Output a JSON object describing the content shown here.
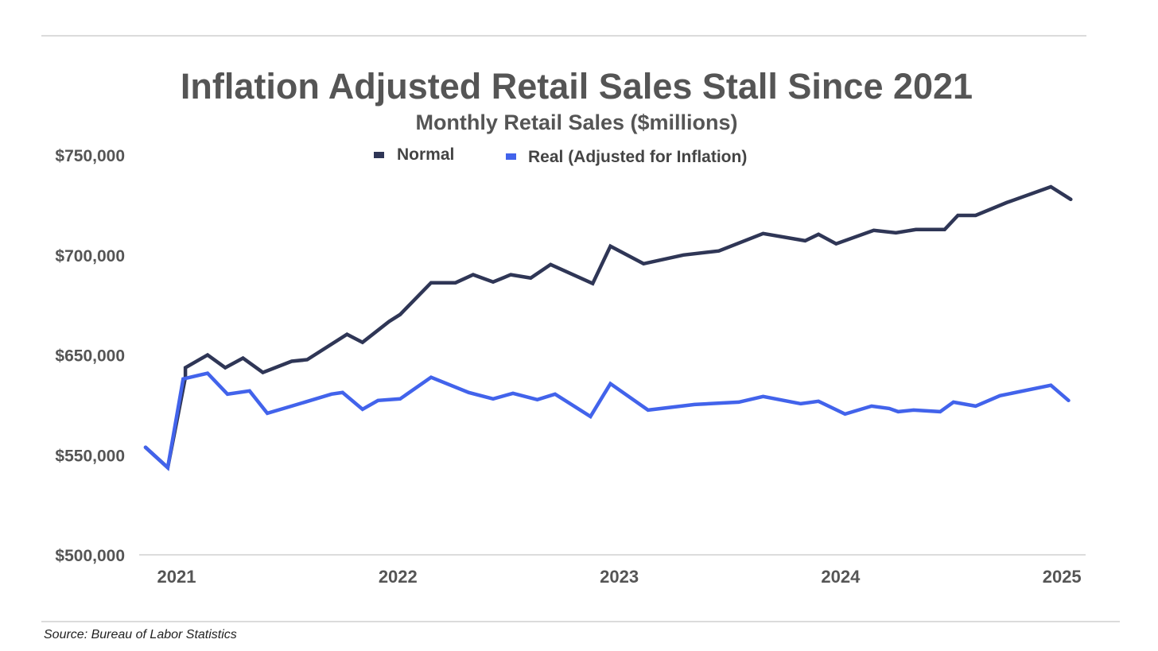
{
  "chart_data": {
    "type": "line",
    "title": "Inflation Adjusted Retail Sales Stall Since 2021",
    "subtitle": "Monthly Retail Sales ($millions)",
    "xlabel": "",
    "ylabel": "",
    "source": "Source: Bureau of Labor Statistics",
    "legend_position": "top-center",
    "grid": false,
    "x_ticks": [
      "2021",
      "2022",
      "2023",
      "2024",
      "2025"
    ],
    "x_tick_values": [
      2021,
      2022,
      2023,
      2024,
      2025
    ],
    "y_ticks": [
      "$500,000",
      "$550,000",
      "$650,000",
      "$700,000",
      "$750,000"
    ],
    "y_tick_values": [
      500000,
      550000,
      650000,
      700000,
      750000
    ],
    "ylim": [
      500000,
      750000
    ],
    "series": [
      {
        "name": "Normal",
        "color": "#2f3656",
        "points": [
          [
            2020.86,
            557500
          ],
          [
            2020.96,
            543600
          ],
          [
            2021.04,
            627600
          ],
          [
            2021.04,
            637200
          ],
          [
            2021.14,
            650000
          ],
          [
            2021.22,
            637200
          ],
          [
            2021.3,
            646800
          ],
          [
            2021.39,
            632400
          ],
          [
            2021.52,
            643600
          ],
          [
            2021.59,
            645200
          ],
          [
            2021.77,
            660300
          ],
          [
            2021.84,
            656300
          ],
          [
            2021.96,
            666700
          ],
          [
            2022.01,
            670200
          ],
          [
            2022.15,
            686100
          ],
          [
            2022.26,
            686100
          ],
          [
            2022.34,
            690100
          ],
          [
            2022.43,
            686500
          ],
          [
            2022.51,
            690100
          ],
          [
            2022.6,
            688500
          ],
          [
            2022.69,
            695200
          ],
          [
            2022.88,
            685700
          ],
          [
            2022.96,
            704400
          ],
          [
            2023.11,
            695600
          ],
          [
            2023.29,
            700000
          ],
          [
            2023.45,
            702000
          ],
          [
            2023.65,
            710700
          ],
          [
            2023.84,
            707100
          ],
          [
            2023.9,
            710300
          ],
          [
            2023.98,
            705600
          ],
          [
            2024.15,
            712300
          ],
          [
            2024.25,
            711100
          ],
          [
            2024.34,
            712700
          ],
          [
            2024.47,
            712700
          ],
          [
            2024.53,
            719800
          ],
          [
            2024.61,
            719800
          ],
          [
            2024.75,
            726200
          ],
          [
            2024.95,
            734100
          ],
          [
            2025.04,
            727800
          ]
        ]
      },
      {
        "name": "Real (Adjusted for Inflation)",
        "color": "#4263eb",
        "points": [
          [
            2020.86,
            557500
          ],
          [
            2020.96,
            543600
          ],
          [
            2021.03,
            626000
          ],
          [
            2021.14,
            631600
          ],
          [
            2021.23,
            610800
          ],
          [
            2021.33,
            614000
          ],
          [
            2021.41,
            591600
          ],
          [
            2021.52,
            598800
          ],
          [
            2021.7,
            610800
          ],
          [
            2021.75,
            612400
          ],
          [
            2021.84,
            595600
          ],
          [
            2021.91,
            604400
          ],
          [
            2022.01,
            606000
          ],
          [
            2022.15,
            627600
          ],
          [
            2022.32,
            612400
          ],
          [
            2022.43,
            606000
          ],
          [
            2022.52,
            611600
          ],
          [
            2022.63,
            605200
          ],
          [
            2022.71,
            610800
          ],
          [
            2022.87,
            588400
          ],
          [
            2022.96,
            621200
          ],
          [
            2023.13,
            594800
          ],
          [
            2023.25,
            598000
          ],
          [
            2023.34,
            600400
          ],
          [
            2023.54,
            602800
          ],
          [
            2023.65,
            608400
          ],
          [
            2023.82,
            601200
          ],
          [
            2023.9,
            603600
          ],
          [
            2024.02,
            590800
          ],
          [
            2024.14,
            598800
          ],
          [
            2024.22,
            596400
          ],
          [
            2024.26,
            593200
          ],
          [
            2024.33,
            594800
          ],
          [
            2024.45,
            593200
          ],
          [
            2024.51,
            602800
          ],
          [
            2024.61,
            598800
          ],
          [
            2024.72,
            609200
          ],
          [
            2024.95,
            619600
          ],
          [
            2025.03,
            604400
          ]
        ]
      }
    ]
  }
}
